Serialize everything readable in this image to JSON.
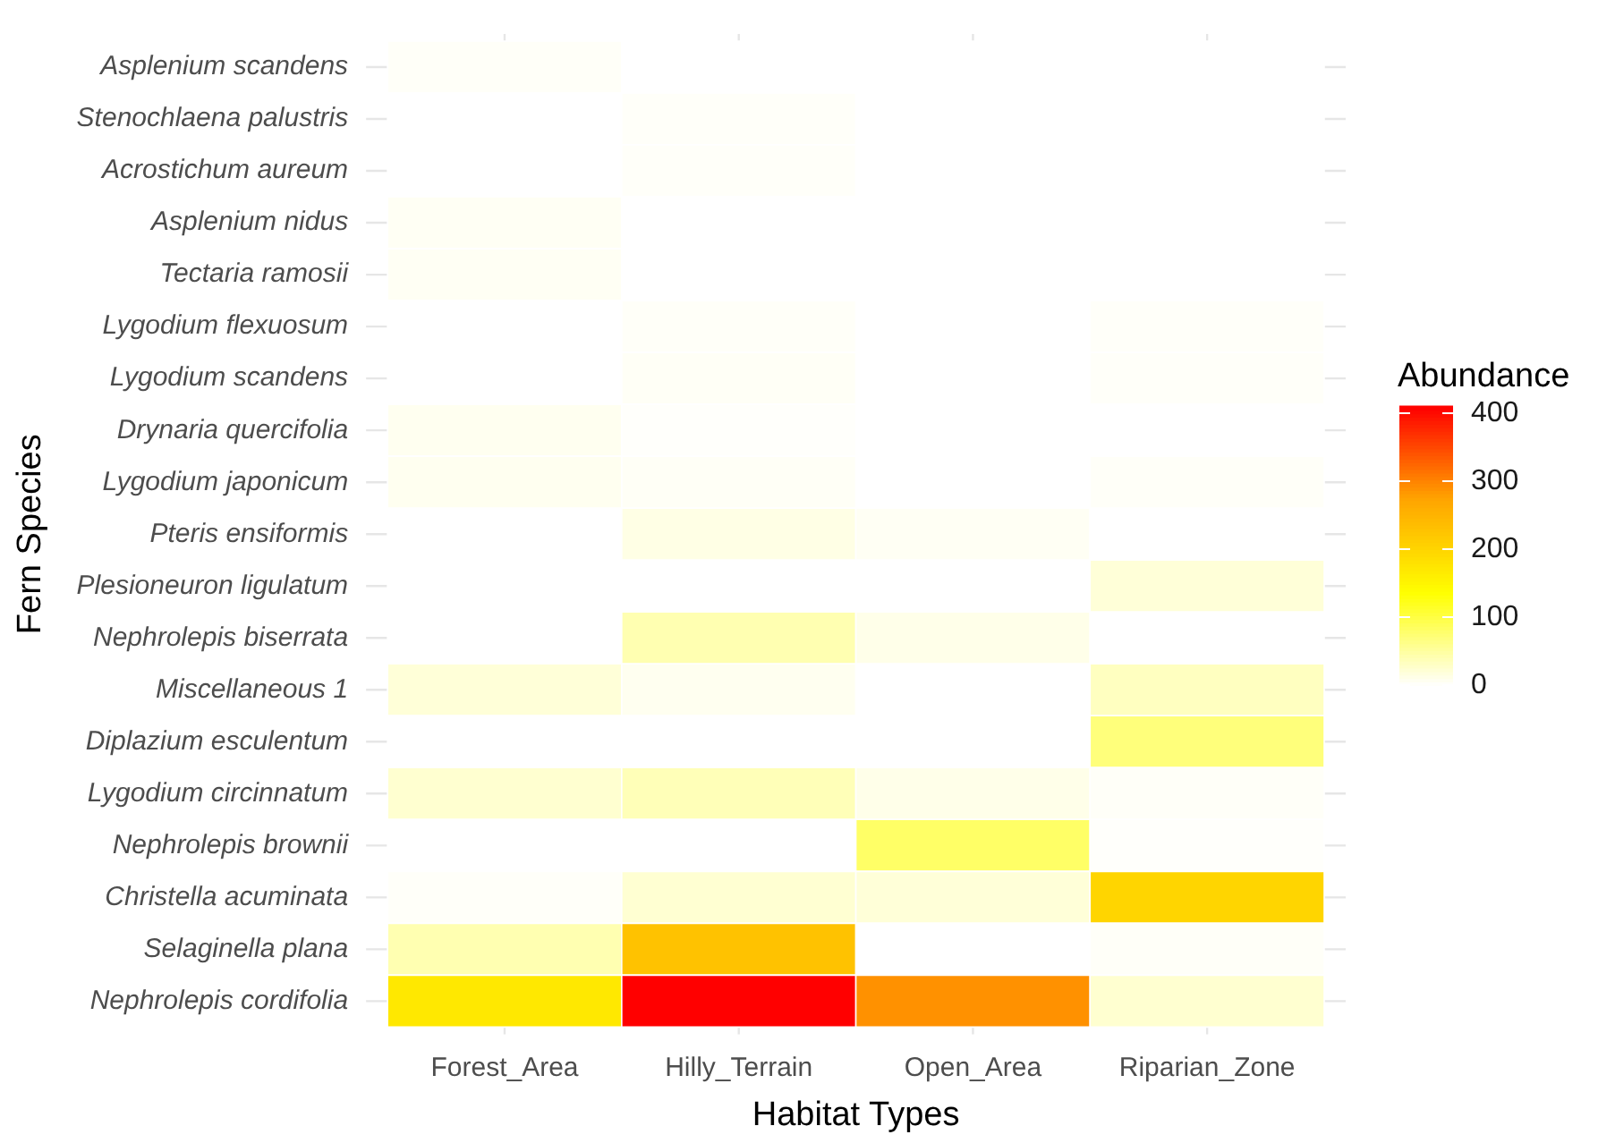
{
  "chart_data": {
    "type": "heatmap",
    "xlabel": "Habitat Types",
    "ylabel": "Fern Species",
    "clabel": "Abundance",
    "categories": [
      "Forest_Area",
      "Hilly_Terrain",
      "Open_Area",
      "Riparian_Zone"
    ],
    "y_categories": [
      "Asplenium scandens",
      "Stenochlaena palustris",
      "Acrostichum aureum",
      "Asplenium nidus",
      "Tectaria ramosii",
      "Lygodium flexuosum",
      "Lygodium scandens",
      "Drynaria quercifolia",
      "Lygodium japonicum",
      "Pteris ensiformis",
      "Plesioneuron ligulatum",
      "Nephrolepis biserrata",
      "Miscellaneous 1",
      "Diplazium esculentum",
      "Lygodium circinnatum",
      "Nephrolepis brownii",
      "Christella acuminata",
      "Selaginella plana",
      "Nephrolepis cordifolia"
    ],
    "cells": [
      [
        4,
        0,
        0,
        0
      ],
      [
        0,
        3,
        0,
        0
      ],
      [
        0,
        3,
        0,
        0
      ],
      [
        6,
        0,
        0,
        0
      ],
      [
        6,
        0,
        0,
        0
      ],
      [
        0,
        4,
        0,
        3
      ],
      [
        0,
        5,
        0,
        3
      ],
      [
        8,
        2,
        0,
        0
      ],
      [
        8,
        5,
        0,
        4
      ],
      [
        0,
        14,
        6,
        0
      ],
      [
        0,
        0,
        0,
        21
      ],
      [
        0,
        42,
        12,
        0
      ],
      [
        21,
        8,
        0,
        34
      ],
      [
        0,
        0,
        0,
        71
      ],
      [
        25,
        38,
        12,
        4
      ],
      [
        0,
        0,
        82,
        2
      ],
      [
        3,
        24,
        21,
        200
      ],
      [
        42,
        229,
        0,
        4
      ],
      [
        172,
        410,
        290,
        25
      ]
    ],
    "clim": [
      0,
      410
    ],
    "cticks": [
      0,
      100,
      200,
      300,
      400
    ],
    "grid": true
  }
}
